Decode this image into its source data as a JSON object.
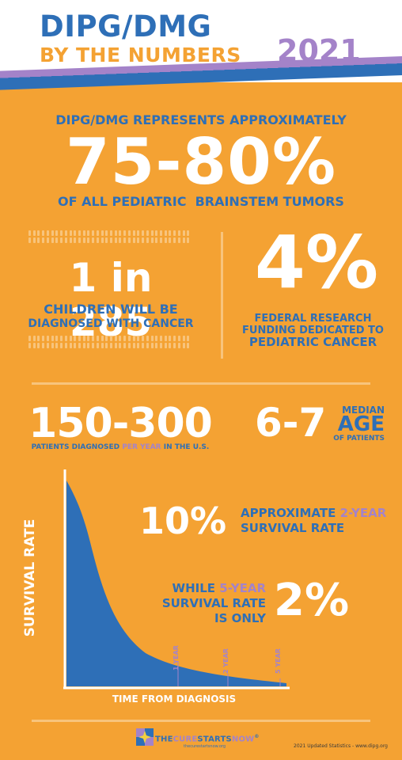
{
  "header": {
    "title_line1": "DIPG/DMG",
    "title_line2": "BY THE NUMBERS",
    "year": "2021"
  },
  "represents": {
    "label": "DIPG/DMG REPRESENTS APPROXIMATELY",
    "value": "75-80%",
    "caption": "OF ALL PEDIATRIC  BRAINSTEM TUMORS"
  },
  "children": {
    "value": "1 in 285",
    "caption_line1": "CHILDREN WILL BE",
    "caption_line2": "DIAGNOSED WITH CANCER"
  },
  "funding": {
    "value": "4%",
    "caption_line1": "FEDERAL RESEARCH",
    "caption_line2": "FUNDING DEDICATED TO",
    "caption_line3": "PEDIATRIC CANCER"
  },
  "patients": {
    "value": "150-300",
    "caption_part1": "PATIENTS DIAGNOSED ",
    "caption_highlight": "PER YEAR",
    "caption_part2": " IN THE U.S."
  },
  "age": {
    "value": "6-7",
    "median_label": "MEDIAN",
    "age_label": "AGE",
    "patients_label": "OF PATIENTS"
  },
  "survival": {
    "ylabel": "SURVIVAL RATE",
    "xlabel": "TIME FROM DIAGNOSIS",
    "ticks": [
      "1 YEAR",
      "2 YEAR",
      "5 YEAR"
    ],
    "two_year_value": "10%",
    "two_year_caption_a": "APPROXIMATE ",
    "two_year_caption_highlight": "2-YEAR",
    "two_year_caption_b": "SURVIVAL RATE",
    "five_year_caption_a": "WHILE ",
    "five_year_caption_highlight": "5-YEAR",
    "five_year_caption_b": "SURVIVAL RATE",
    "five_year_caption_c": "IS ONLY",
    "five_year_value": "2%"
  },
  "footer": {
    "logo_the": "THE",
    "logo_cure": "CURE",
    "logo_starts": "STARTS",
    "logo_now": "NOW",
    "logo_reg": "®",
    "logo_url": "thecurestartsnow.org",
    "note": "2021 Updated Statistics - www.dipg.org"
  },
  "colors": {
    "background": "#F4A233",
    "blue": "#2E6FB7",
    "purple": "#A483C9",
    "light_orange": "#F8C47C"
  }
}
